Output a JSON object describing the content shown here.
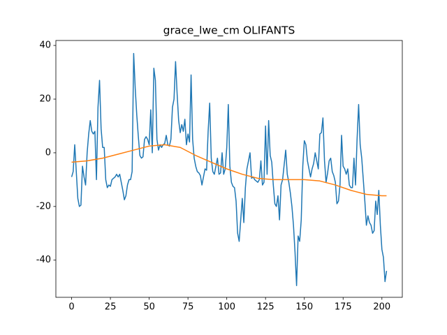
{
  "chart_data": {
    "type": "line",
    "title": "grace_lwe_cm OLIFANTS",
    "xlim": [
      -10.15,
      213.15
    ],
    "ylim": [
      -53.85,
      41.85
    ],
    "xticks": [
      0,
      25,
      50,
      75,
      100,
      125,
      150,
      175,
      200
    ],
    "yticks": [
      -40,
      -20,
      0,
      20,
      40
    ],
    "series": [
      {
        "color": "#1f77b4",
        "x": [
          0,
          1,
          2,
          3,
          4,
          5,
          6,
          7,
          8,
          9,
          10,
          11,
          12,
          13,
          14,
          15,
          16,
          17,
          18,
          19,
          20,
          21,
          22,
          23,
          24,
          25,
          26,
          27,
          28,
          29,
          30,
          31,
          32,
          33,
          34,
          35,
          36,
          37,
          38,
          39,
          40,
          41,
          42,
          43,
          44,
          45,
          46,
          47,
          48,
          49,
          50,
          51,
          52,
          53,
          54,
          55,
          56,
          57,
          58,
          59,
          60,
          61,
          62,
          63,
          64,
          65,
          66,
          67,
          68,
          69,
          70,
          71,
          72,
          73,
          74,
          75,
          76,
          77,
          78,
          79,
          80,
          81,
          82,
          83,
          84,
          85,
          86,
          87,
          88,
          89,
          90,
          91,
          92,
          93,
          94,
          95,
          96,
          97,
          98,
          99,
          100,
          101,
          102,
          103,
          104,
          105,
          106,
          107,
          108,
          109,
          110,
          111,
          112,
          113,
          114,
          115,
          116,
          117,
          118,
          119,
          120,
          121,
          122,
          123,
          124,
          125,
          126,
          127,
          128,
          129,
          130,
          131,
          132,
          133,
          134,
          135,
          136,
          137,
          138,
          139,
          140,
          141,
          142,
          143,
          144,
          145,
          146,
          147,
          148,
          149,
          150,
          151,
          152,
          153,
          154,
          155,
          156,
          157,
          158,
          159,
          160,
          161,
          162,
          163,
          164,
          165,
          166,
          167,
          168,
          169,
          170,
          171,
          172,
          173,
          174,
          175,
          176,
          177,
          178,
          179,
          180,
          181,
          182,
          183,
          184,
          185,
          186,
          187,
          188,
          189,
          190,
          191,
          192,
          193,
          194,
          195,
          196,
          197,
          198,
          199,
          200,
          201,
          202,
          203
        ],
        "values": [
          -9,
          -7,
          3,
          -7,
          -17,
          -20,
          -19.5,
          -5,
          -9,
          -12,
          0,
          7,
          12,
          8,
          7,
          8,
          -10,
          17,
          27,
          9,
          2,
          2,
          -10,
          -13,
          -12,
          -12.5,
          -10,
          -9.5,
          -9,
          -8,
          -9,
          -8,
          -11,
          -14,
          -17.5,
          -16,
          -12,
          -10,
          -10,
          -7,
          37,
          24,
          14,
          6,
          -1,
          -2,
          -1.5,
          5,
          6,
          5,
          3,
          16,
          0,
          31.5,
          27,
          5,
          1,
          3,
          2,
          3,
          3.5,
          6.5,
          3,
          2.5,
          5,
          17,
          20,
          34,
          22,
          12,
          7.5,
          10.5,
          8,
          12.5,
          3,
          7,
          4,
          29,
          5,
          -2,
          -5,
          -7,
          -7.5,
          -8.5,
          -12,
          -9,
          -6,
          -6.5,
          8,
          18.5,
          -2,
          -7,
          -8,
          -5,
          -2,
          -8,
          -7.5,
          0,
          -8,
          -6,
          2,
          18,
          -5,
          -11,
          -12.5,
          -13,
          -18,
          -30,
          -33,
          -25,
          -17,
          -26,
          -13,
          -6,
          -3,
          0,
          -9.5,
          -9,
          -10,
          -10.5,
          -11,
          -10,
          -3,
          -12,
          -11,
          10,
          -8,
          12,
          -1,
          -3.5,
          -12,
          -19,
          -20,
          -16,
          -25,
          -12,
          -10,
          -4.5,
          1,
          -8,
          -11,
          -15,
          -20,
          -27,
          -37,
          -49.5,
          -31,
          -33,
          -25,
          -5,
          4.5,
          3,
          -3,
          -6,
          -9,
          -6,
          -4,
          0,
          -3,
          -6,
          7,
          7.5,
          13,
          -3,
          -11,
          -7.5,
          -3,
          -2,
          -7,
          -8.5,
          -11,
          -19,
          -18,
          -12,
          6.5,
          -5,
          -6,
          -8,
          -6,
          -12,
          -13,
          -13,
          -2,
          -12,
          5,
          18,
          3,
          -2,
          -10,
          -18,
          -27,
          -23.5,
          -26,
          -27,
          -30,
          -29,
          -18,
          -23,
          -14,
          -27,
          -36,
          -39,
          -48,
          -44
        ]
      },
      {
        "color": "#ff7f0e",
        "x": [
          0,
          10,
          20,
          30,
          40,
          50,
          60,
          70,
          80,
          90,
          100,
          110,
          120,
          130,
          140,
          150,
          160,
          170,
          180,
          190,
          200,
          203
        ],
        "values": [
          -3.5,
          -3,
          -2,
          -0.5,
          1,
          2.5,
          3,
          2,
          -1,
          -3.5,
          -6,
          -8,
          -9.5,
          -10,
          -10,
          -10,
          -10.5,
          -12,
          -14,
          -15.5,
          -16,
          -16
        ]
      }
    ]
  }
}
